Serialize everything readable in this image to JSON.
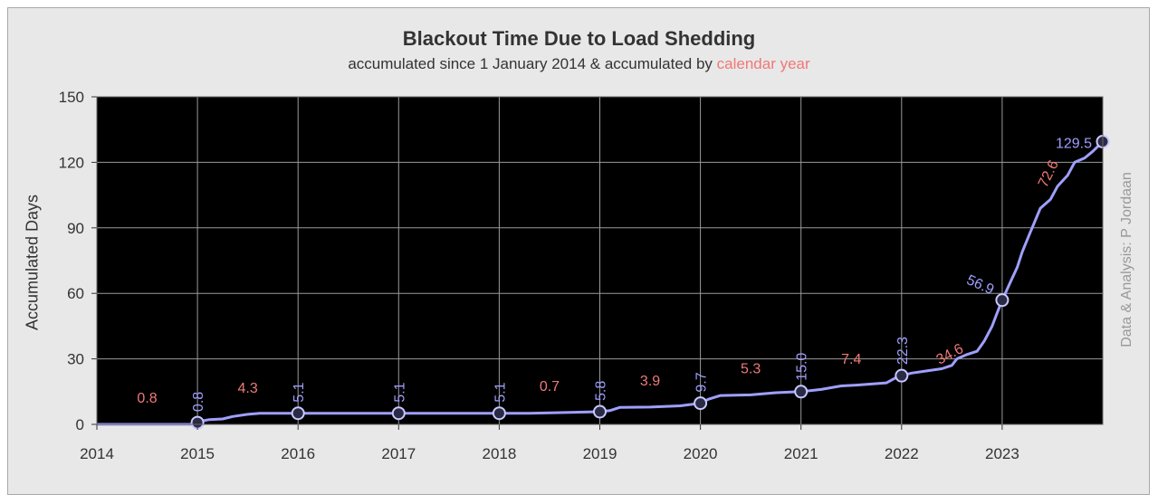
{
  "chart_data": {
    "type": "line",
    "title": "Blackout Time Due to Load Shedding",
    "subtitle": "accumulated since 1 January 2014 & accumulated by",
    "subtitle_highlight": "calendar year",
    "xlabel": "",
    "ylabel": "Accumulated Days",
    "credit": "Data & Analysis: P Jordaan",
    "xlim": [
      2014,
      2024
    ],
    "ylim": [
      0,
      150
    ],
    "x_ticks": [
      "2014",
      "2015",
      "2016",
      "2017",
      "2018",
      "2019",
      "2020",
      "2021",
      "2022",
      "2023"
    ],
    "y_ticks": [
      "0",
      "30",
      "60",
      "90",
      "120",
      "150"
    ],
    "grid": true,
    "series": [
      {
        "values": [
          [
            2014.0,
            0
          ],
          [
            2014.95,
            0
          ],
          [
            2015.0,
            0.8
          ],
          [
            2015.05,
            1.6
          ],
          [
            2015.12,
            2.2
          ],
          [
            2015.25,
            2.5
          ],
          [
            2015.35,
            3.6
          ],
          [
            2015.5,
            4.6
          ],
          [
            2015.62,
            5.1
          ],
          [
            2016.0,
            5.1
          ],
          [
            2017.0,
            5.1
          ],
          [
            2018.0,
            5.1
          ],
          [
            2018.3,
            5.1
          ],
          [
            2019.0,
            5.8
          ],
          [
            2019.1,
            6.3
          ],
          [
            2019.2,
            7.8
          ],
          [
            2019.5,
            7.9
          ],
          [
            2019.8,
            8.5
          ],
          [
            2020.0,
            9.7
          ],
          [
            2020.08,
            11.5
          ],
          [
            2020.2,
            13.2
          ],
          [
            2020.5,
            13.5
          ],
          [
            2020.75,
            14.5
          ],
          [
            2021.0,
            15.0
          ],
          [
            2021.2,
            16.0
          ],
          [
            2021.4,
            17.6
          ],
          [
            2021.55,
            18.0
          ],
          [
            2021.7,
            18.5
          ],
          [
            2021.85,
            19.0
          ],
          [
            2021.95,
            21.5
          ],
          [
            2022.0,
            22.3
          ],
          [
            2022.1,
            23.5
          ],
          [
            2022.25,
            24.5
          ],
          [
            2022.4,
            25.5
          ],
          [
            2022.5,
            27.0
          ],
          [
            2022.55,
            30.0
          ],
          [
            2022.65,
            32.0
          ],
          [
            2022.75,
            33.5
          ],
          [
            2022.82,
            38.0
          ],
          [
            2022.9,
            45.0
          ],
          [
            2022.95,
            51.0
          ],
          [
            2023.0,
            56.9
          ],
          [
            2023.08,
            65.0
          ],
          [
            2023.15,
            72.0
          ],
          [
            2023.2,
            79.0
          ],
          [
            2023.28,
            88.0
          ],
          [
            2023.38,
            99.0
          ],
          [
            2023.48,
            103.0
          ],
          [
            2023.55,
            109.0
          ],
          [
            2023.65,
            114.0
          ],
          [
            2023.72,
            120.0
          ],
          [
            2023.82,
            122.0
          ],
          [
            2023.9,
            125.0
          ],
          [
            2024.0,
            129.5
          ]
        ]
      }
    ],
    "markers": [
      {
        "x": 2015,
        "y": 0.8,
        "label": "0.8"
      },
      {
        "x": 2016,
        "y": 5.1,
        "label": "5.1"
      },
      {
        "x": 2017,
        "y": 5.1,
        "label": "5.1"
      },
      {
        "x": 2018,
        "y": 5.1,
        "label": "5.1"
      },
      {
        "x": 2019,
        "y": 5.8,
        "label": "5.8"
      },
      {
        "x": 2020,
        "y": 9.7,
        "label": "9.7"
      },
      {
        "x": 2021,
        "y": 15.0,
        "label": "15.0"
      },
      {
        "x": 2022,
        "y": 22.3,
        "label": "22.3"
      },
      {
        "x": 2023,
        "y": 56.9,
        "label": "56.9"
      },
      {
        "x": 2024,
        "y": 129.5,
        "label": "129.5"
      }
    ],
    "annual_labels": [
      {
        "year": 2014,
        "label": "0.8"
      },
      {
        "year": 2015,
        "label": "4.3"
      },
      {
        "year": 2018,
        "label": "0.7"
      },
      {
        "year": 2019,
        "label": "3.9"
      },
      {
        "year": 2020,
        "label": "5.3"
      },
      {
        "year": 2021,
        "label": "7.4"
      },
      {
        "year": 2022,
        "label": "34.6"
      },
      {
        "year": 2023,
        "label": "72.6"
      }
    ],
    "colors": {
      "plot_background": "#000000",
      "frame_background": "#e8e8e8",
      "line": "#9f9fff",
      "marker_fill": "#2a2a44",
      "cumulative_label": "#9f9fff",
      "annual_label": "#f07878",
      "grid": "#9a9a9a"
    }
  }
}
